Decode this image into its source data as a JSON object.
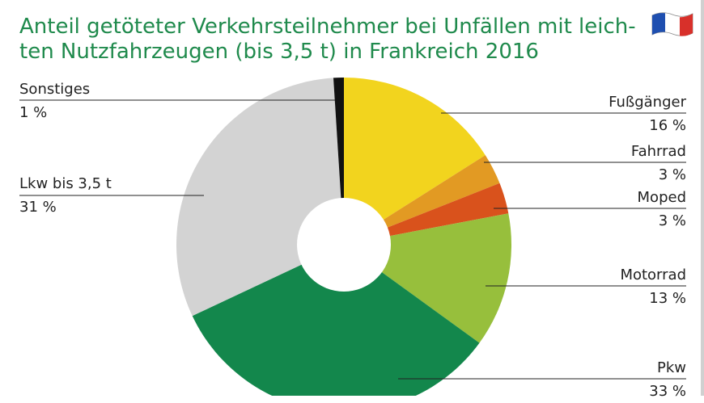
{
  "title_line1": "Anteil getöteter Verkehrsteilnehmer bei Unfällen mit leich-",
  "title_line2": "ten Nutzfahrzeugen (bis 3,5 t) in Frankreich 2016",
  "flag_icon": "france-flag-icon",
  "colors": {
    "title": "#1f8a4c",
    "flag_blue": "#1f4fb0",
    "flag_white": "#ffffff",
    "flag_red": "#d8302a"
  },
  "chart_data": {
    "type": "pie",
    "style": "donut",
    "title": "Anteil getöteter Verkehrsteilnehmer bei Unfällen mit leichten Nutzfahrzeugen (bis 3,5 t) in Frankreich 2016",
    "unit": "%",
    "slices": [
      {
        "name": "Fußgänger",
        "value": 16,
        "label": "16 %",
        "color": "#f2d41e"
      },
      {
        "name": "Fahrrad",
        "value": 3,
        "label": "3 %",
        "color": "#e29a23"
      },
      {
        "name": "Moped",
        "value": 3,
        "label": "3 %",
        "color": "#d9521c"
      },
      {
        "name": "Motorrad",
        "value": 13,
        "label": "13 %",
        "color": "#97bf3c"
      },
      {
        "name": "Pkw",
        "value": 33,
        "label": "33 %",
        "color": "#13874c"
      },
      {
        "name": "Lkw bis 3,5 t",
        "value": 31,
        "label": "31 %",
        "color": "#d3d3d3"
      },
      {
        "name": "Sonstiges",
        "value": 1,
        "label": "1 %",
        "color": "#111111"
      }
    ]
  }
}
